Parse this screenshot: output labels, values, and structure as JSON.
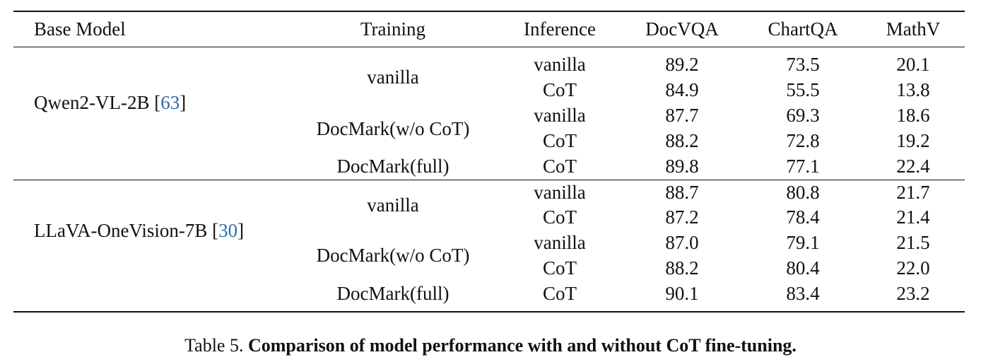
{
  "table": {
    "headers": [
      "Base Model",
      "Training",
      "Inference",
      "DocVQA",
      "ChartQA",
      "MathV"
    ],
    "groups": [
      {
        "base_model": "Qwen2-VL-2B",
        "cite_open": "[",
        "cite": "63",
        "cite_close": "]",
        "training_blocks": [
          {
            "training": "vanilla",
            "rows": [
              {
                "inference": "vanilla",
                "docvqa": "89.2",
                "chartqa": "73.5",
                "mathv": "20.1"
              },
              {
                "inference": "CoT",
                "docvqa": "84.9",
                "chartqa": "55.5",
                "mathv": "13.8"
              }
            ]
          },
          {
            "training": "DocMark(w/o CoT)",
            "rows": [
              {
                "inference": "vanilla",
                "docvqa": "87.7",
                "chartqa": "69.3",
                "mathv": "18.6"
              },
              {
                "inference": "CoT",
                "docvqa": "88.2",
                "chartqa": "72.8",
                "mathv": "19.2"
              }
            ]
          },
          {
            "training": "DocMark(full)",
            "rows": [
              {
                "inference": "CoT",
                "docvqa": "89.8",
                "chartqa": "77.1",
                "mathv": "22.4"
              }
            ]
          }
        ]
      },
      {
        "base_model": "LLaVA-OneVision-7B",
        "cite_open": "[",
        "cite": "30",
        "cite_close": "]",
        "training_blocks": [
          {
            "training": "vanilla",
            "rows": [
              {
                "inference": "vanilla",
                "docvqa": "88.7",
                "chartqa": "80.8",
                "mathv": "21.7"
              },
              {
                "inference": "CoT",
                "docvqa": "87.2",
                "chartqa": "78.4",
                "mathv": "21.4"
              }
            ]
          },
          {
            "training": "DocMark(w/o CoT)",
            "rows": [
              {
                "inference": "vanilla",
                "docvqa": "87.0",
                "chartqa": "79.1",
                "mathv": "21.5"
              },
              {
                "inference": "CoT",
                "docvqa": "88.2",
                "chartqa": "80.4",
                "mathv": "22.0"
              }
            ]
          },
          {
            "training": "DocMark(full)",
            "rows": [
              {
                "inference": "CoT",
                "docvqa": "90.1",
                "chartqa": "83.4",
                "mathv": "23.2"
              }
            ]
          }
        ]
      }
    ]
  },
  "caption": {
    "label": "Table 5.",
    "text": "Comparison of model performance with and without CoT fine-tuning."
  }
}
